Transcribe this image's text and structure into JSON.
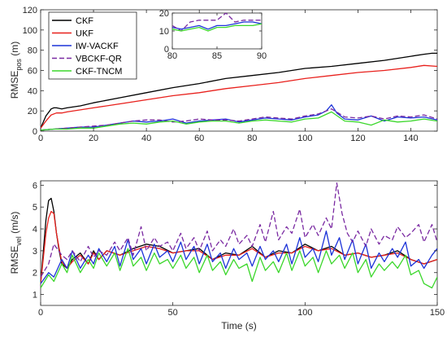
{
  "chart_data": [
    {
      "id": "pos",
      "type": "line",
      "xlabel": "",
      "ylabel": {
        "main": "RMSE",
        "sub": "pos",
        "unit": " (m)"
      },
      "xlim": [
        0,
        150
      ],
      "ylim": [
        0,
        120
      ],
      "xticks": [
        0,
        20,
        40,
        60,
        80,
        100,
        120,
        140
      ],
      "yticks": [
        0,
        20,
        40,
        60,
        80,
        100,
        120
      ],
      "grid": false,
      "legend": "top-left",
      "series": [
        {
          "name": "CKF",
          "color": "#000000",
          "dash": "",
          "x": [
            0,
            2,
            4,
            5,
            6,
            8,
            10,
            15,
            20,
            30,
            40,
            50,
            60,
            70,
            80,
            90,
            100,
            110,
            120,
            130,
            140,
            145,
            148,
            150
          ],
          "y": [
            3,
            15,
            22,
            23,
            23,
            22,
            23,
            25,
            28,
            33,
            38,
            43,
            47,
            52,
            55,
            58,
            62,
            64,
            67,
            70,
            74,
            76,
            77,
            77
          ]
        },
        {
          "name": "UKF",
          "color": "#e8201c",
          "dash": "",
          "x": [
            0,
            2,
            4,
            6,
            8,
            10,
            15,
            20,
            30,
            40,
            50,
            60,
            70,
            80,
            90,
            100,
            110,
            120,
            130,
            140,
            145,
            150
          ],
          "y": [
            3,
            10,
            16,
            18,
            18,
            19,
            21,
            23,
            27,
            31,
            35,
            38,
            42,
            45,
            48,
            52,
            55,
            58,
            60,
            63,
            65,
            64
          ]
        },
        {
          "name": "IW-VACKF",
          "color": "#1c33d8",
          "dash": "",
          "x": [
            0,
            5,
            10,
            15,
            20,
            25,
            30,
            35,
            40,
            45,
            50,
            55,
            60,
            65,
            70,
            75,
            80,
            85,
            90,
            95,
            100,
            105,
            108,
            110,
            112,
            115,
            120,
            125,
            130,
            135,
            140,
            145,
            150
          ],
          "y": [
            1,
            2,
            3,
            4,
            4,
            6,
            8,
            10,
            9,
            10,
            12,
            8,
            10,
            11,
            12,
            9,
            11,
            13,
            12,
            11,
            14,
            16,
            20,
            26,
            18,
            12,
            11,
            15,
            10,
            14,
            13,
            14,
            11
          ]
        },
        {
          "name": "VBCKF-QR",
          "color": "#7a2aa2",
          "dash": "6,3",
          "x": [
            0,
            5,
            10,
            15,
            20,
            25,
            30,
            35,
            40,
            45,
            50,
            55,
            60,
            65,
            70,
            75,
            80,
            85,
            90,
            95,
            100,
            105,
            110,
            115,
            120,
            125,
            130,
            135,
            140,
            145,
            150
          ],
          "y": [
            1,
            2,
            3,
            4,
            5,
            6,
            8,
            10,
            11,
            11,
            9,
            10,
            12,
            11,
            11,
            10,
            12,
            14,
            13,
            12,
            15,
            17,
            22,
            14,
            13,
            15,
            12,
            15,
            14,
            16,
            12
          ]
        },
        {
          "name": "CKF-TNCM",
          "color": "#3bd72b",
          "dash": "",
          "x": [
            0,
            5,
            10,
            15,
            20,
            25,
            30,
            35,
            40,
            45,
            50,
            55,
            60,
            65,
            70,
            75,
            80,
            85,
            90,
            95,
            100,
            105,
            110,
            115,
            120,
            125,
            130,
            135,
            140,
            145,
            150
          ],
          "y": [
            1,
            2,
            2,
            3,
            3,
            5,
            7,
            8,
            7,
            9,
            10,
            7,
            9,
            10,
            10,
            8,
            10,
            11,
            10,
            9,
            12,
            13,
            19,
            10,
            9,
            6,
            11,
            9,
            10,
            12,
            10
          ]
        }
      ]
    },
    {
      "id": "pos-inset",
      "type": "line",
      "xlabel": "",
      "ylabel": "",
      "xlim": [
        80,
        90
      ],
      "ylim": [
        0,
        20
      ],
      "xticks": [
        80,
        85,
        90
      ],
      "yticks": [
        0,
        10,
        20
      ],
      "grid": false,
      "series": [
        {
          "name": "IW-VACKF",
          "color": "#1c33d8",
          "dash": "",
          "x": [
            80,
            81,
            82,
            83,
            84,
            85,
            86,
            87,
            88,
            89,
            90
          ],
          "y": [
            12,
            11,
            12,
            13,
            11,
            13,
            13,
            14,
            15,
            15,
            14
          ]
        },
        {
          "name": "VBCKF-QR",
          "color": "#7a2aa2",
          "dash": "6,3",
          "x": [
            80,
            81,
            82,
            83,
            84,
            85,
            86,
            87,
            88,
            89,
            90
          ],
          "y": [
            13,
            10,
            15,
            16,
            16,
            16,
            20,
            15,
            16,
            16,
            16
          ]
        },
        {
          "name": "CKF-TNCM",
          "color": "#3bd72b",
          "dash": "",
          "x": [
            80,
            81,
            82,
            83,
            84,
            85,
            86,
            87,
            88,
            89,
            90
          ],
          "y": [
            11,
            10,
            11,
            12,
            10,
            12,
            12,
            13,
            13,
            13,
            14
          ]
        }
      ]
    },
    {
      "id": "vel",
      "type": "line",
      "xlabel": "Time (s)",
      "ylabel": {
        "main": "RMSE",
        "sub": "vel",
        "unit": " (m/s)"
      },
      "xlim": [
        0,
        150
      ],
      "ylim": [
        0.5,
        6.2
      ],
      "xticks": [
        0,
        50,
        100,
        150
      ],
      "yticks": [
        1,
        2,
        3,
        4,
        5,
        6
      ],
      "grid": false,
      "legend": "none",
      "series": [
        {
          "name": "CKF",
          "color": "#000000",
          "dash": "",
          "x": [
            0,
            2,
            3,
            4,
            5,
            6,
            7,
            8,
            10,
            12,
            15,
            18,
            20,
            22,
            25,
            30,
            35,
            40,
            45,
            50,
            55,
            60,
            65,
            70,
            75,
            80,
            85,
            90,
            95,
            100,
            105,
            110,
            115,
            120,
            125,
            130,
            135,
            140,
            145,
            150
          ],
          "y": [
            1.5,
            4.4,
            5.3,
            5.4,
            4.8,
            3.8,
            3.0,
            2.4,
            2.2,
            2.6,
            2.9,
            2.4,
            3.0,
            2.6,
            3.0,
            2.8,
            3.1,
            3.3,
            3.2,
            2.9,
            3.0,
            3.1,
            2.6,
            2.9,
            2.8,
            3.2,
            2.7,
            3.0,
            2.9,
            3.3,
            3.0,
            3.2,
            2.8,
            2.9,
            2.7,
            2.8,
            3.0,
            2.6,
            2.4,
            2.6
          ]
        },
        {
          "name": "UKF",
          "color": "#e8201c",
          "dash": "",
          "x": [
            0,
            2,
            3,
            4,
            5,
            6,
            7,
            8,
            10,
            12,
            15,
            18,
            20,
            22,
            25,
            30,
            35,
            40,
            45,
            50,
            55,
            60,
            65,
            70,
            75,
            80,
            85,
            90,
            95,
            100,
            105,
            110,
            115,
            120,
            125,
            130,
            135,
            140,
            145,
            150
          ],
          "y": [
            1.5,
            3.8,
            4.5,
            4.8,
            4.7,
            3.8,
            3.1,
            2.5,
            2.2,
            2.5,
            2.8,
            2.4,
            2.9,
            2.6,
            3.0,
            2.8,
            3.0,
            3.2,
            3.1,
            2.9,
            3.0,
            3.0,
            2.6,
            2.8,
            2.8,
            3.1,
            2.7,
            2.9,
            2.9,
            3.2,
            3.0,
            3.1,
            2.8,
            2.9,
            2.7,
            2.8,
            2.9,
            2.6,
            2.4,
            2.6
          ]
        },
        {
          "name": "IW-VACKF",
          "color": "#1c33d8",
          "dash": "",
          "x": [
            0,
            3,
            5,
            8,
            10,
            12,
            15,
            18,
            20,
            22,
            25,
            28,
            30,
            33,
            35,
            38,
            40,
            43,
            45,
            48,
            50,
            53,
            55,
            58,
            60,
            63,
            65,
            68,
            70,
            73,
            75,
            78,
            80,
            83,
            85,
            88,
            90,
            93,
            95,
            98,
            100,
            103,
            105,
            108,
            110,
            113,
            115,
            118,
            120,
            123,
            125,
            128,
            130,
            133,
            135,
            138,
            140,
            143,
            145,
            148,
            150
          ],
          "y": [
            1.5,
            2.0,
            1.8,
            2.6,
            2.2,
            3.0,
            2.2,
            2.8,
            2.4,
            3.1,
            2.5,
            3.2,
            2.3,
            3.5,
            2.6,
            3.1,
            2.4,
            3.3,
            2.7,
            3.0,
            2.5,
            3.4,
            2.6,
            3.2,
            2.4,
            3.3,
            2.5,
            2.9,
            2.2,
            3.1,
            2.6,
            2.9,
            2.3,
            3.2,
            2.6,
            3.0,
            2.5,
            3.3,
            2.4,
            3.6,
            2.7,
            3.1,
            2.5,
            3.9,
            2.8,
            3.6,
            2.6,
            3.5,
            2.4,
            3.3,
            2.2,
            2.9,
            2.5,
            3.1,
            2.7,
            3.4,
            2.3,
            2.6,
            2.2,
            2.8,
            3.1
          ]
        },
        {
          "name": "VBCKF-QR",
          "color": "#7a2aa2",
          "dash": "6,3",
          "x": [
            0,
            3,
            5,
            8,
            10,
            12,
            15,
            18,
            20,
            22,
            25,
            28,
            30,
            33,
            35,
            38,
            40,
            43,
            45,
            48,
            50,
            53,
            55,
            58,
            60,
            63,
            65,
            68,
            70,
            73,
            75,
            78,
            80,
            83,
            85,
            88,
            90,
            93,
            95,
            98,
            100,
            103,
            105,
            108,
            110,
            112,
            114,
            116,
            118,
            120,
            123,
            125,
            128,
            130,
            133,
            135,
            138,
            140,
            143,
            145,
            148,
            150
          ],
          "y": [
            1.8,
            2.4,
            3.3,
            2.8,
            2.6,
            3.0,
            2.5,
            3.2,
            2.7,
            3.0,
            2.8,
            3.4,
            3.0,
            3.6,
            2.8,
            4.1,
            3.0,
            3.6,
            3.2,
            3.4,
            3.0,
            3.8,
            3.1,
            3.6,
            3.0,
            3.9,
            3.0,
            3.5,
            3.2,
            4.0,
            3.3,
            3.7,
            3.2,
            4.2,
            3.4,
            4.8,
            3.5,
            4.1,
            3.8,
            4.9,
            3.6,
            4.2,
            3.7,
            4.5,
            4.0,
            6.1,
            4.7,
            3.8,
            3.4,
            3.9,
            3.2,
            4.0,
            3.3,
            3.7,
            3.5,
            4.1,
            3.6,
            3.8,
            4.2,
            3.4,
            4.2,
            3.4
          ]
        },
        {
          "name": "CKF-TNCM",
          "color": "#3bd72b",
          "dash": "",
          "x": [
            0,
            3,
            5,
            8,
            10,
            12,
            15,
            18,
            20,
            22,
            25,
            28,
            30,
            33,
            35,
            38,
            40,
            43,
            45,
            48,
            50,
            53,
            55,
            58,
            60,
            63,
            65,
            68,
            70,
            73,
            75,
            78,
            80,
            83,
            85,
            88,
            90,
            93,
            95,
            98,
            100,
            103,
            105,
            108,
            110,
            113,
            115,
            118,
            120,
            123,
            125,
            128,
            130,
            133,
            135,
            138,
            140,
            143,
            145,
            148,
            150
          ],
          "y": [
            1.3,
            1.9,
            1.6,
            2.4,
            2.0,
            2.8,
            2.0,
            2.6,
            2.2,
            2.9,
            2.3,
            2.9,
            2.1,
            3.1,
            2.3,
            2.7,
            2.1,
            2.9,
            2.4,
            2.6,
            2.2,
            2.8,
            2.2,
            2.7,
            2.0,
            2.8,
            2.1,
            2.5,
            1.9,
            2.6,
            2.2,
            2.4,
            1.6,
            2.7,
            2.1,
            2.5,
            2.0,
            2.9,
            2.1,
            3.0,
            2.3,
            2.7,
            2.0,
            3.0,
            2.4,
            2.8,
            2.2,
            2.9,
            2.0,
            2.6,
            1.8,
            2.4,
            2.1,
            2.5,
            2.2,
            2.8,
            1.9,
            2.1,
            1.5,
            1.3,
            1.8
          ]
        }
      ]
    }
  ]
}
